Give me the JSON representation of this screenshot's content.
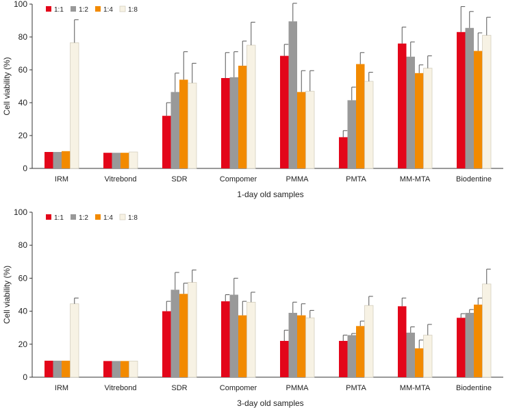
{
  "colors": {
    "s1": "#e3061a",
    "s2": "#999999",
    "s3": "#f28a00",
    "s4": "#f7f2e4",
    "axis": "#333333",
    "err": "#555555"
  },
  "chart_data": [
    {
      "type": "bar",
      "title": "",
      "xlabel": "1-day old samples",
      "ylabel": "Cell viability (%)",
      "ylim": [
        0,
        100
      ],
      "yticks": [
        0,
        20,
        40,
        60,
        80,
        100
      ],
      "legend_position": "top-left",
      "categories": [
        "IRM",
        "Vitrebond",
        "SDR",
        "Compomer",
        "PMMA",
        "PMTA",
        "MM-MTA",
        "Biodentine"
      ],
      "series": [
        {
          "name": "1:1",
          "values": [
            10,
            9.5,
            32,
            55,
            68.5,
            19,
            76,
            83
          ],
          "errors": [
            0,
            0,
            8,
            15.5,
            7,
            4,
            10,
            15.5
          ]
        },
        {
          "name": "1:2",
          "values": [
            10,
            9.5,
            46.5,
            55.5,
            89.5,
            41.5,
            68,
            85.5
          ],
          "errors": [
            0,
            0,
            11.5,
            15.5,
            11,
            8,
            9,
            10
          ]
        },
        {
          "name": "1:4",
          "values": [
            10.5,
            9.5,
            54,
            62.5,
            46.5,
            63.5,
            58,
            71.5
          ],
          "errors": [
            0,
            0,
            17,
            15,
            13,
            7,
            5,
            11
          ]
        },
        {
          "name": "1:8",
          "values": [
            76.5,
            10,
            52,
            75,
            47,
            53,
            61,
            81
          ],
          "errors": [
            14,
            0,
            12,
            14,
            12.5,
            5.5,
            7.5,
            11
          ]
        }
      ]
    },
    {
      "type": "bar",
      "title": "",
      "xlabel": "3-day old samples",
      "ylabel": "Cell viability (%)",
      "ylim": [
        0,
        100
      ],
      "yticks": [
        0,
        20,
        40,
        60,
        80,
        100
      ],
      "legend_position": "top-left",
      "categories": [
        "IRM",
        "Vitrebond",
        "SDR",
        "Compomer",
        "PMMA",
        "PMTA",
        "MM-MTA",
        "Biodentine"
      ],
      "series": [
        {
          "name": "1:1",
          "values": [
            10,
            9.8,
            40,
            46,
            22,
            22,
            43,
            36
          ],
          "errors": [
            0,
            0,
            6,
            4,
            6.5,
            3.5,
            5,
            2.5
          ]
        },
        {
          "name": "1:2",
          "values": [
            10,
            9.8,
            53,
            50,
            39,
            25.5,
            27,
            39
          ],
          "errors": [
            0,
            0,
            10.5,
            10,
            6.5,
            1,
            3.5,
            2
          ]
        },
        {
          "name": "1:4",
          "values": [
            10,
            9.8,
            50.5,
            37.5,
            37.5,
            31,
            17.5,
            44
          ],
          "errors": [
            0,
            0,
            6.5,
            8.5,
            7,
            3,
            5,
            4
          ]
        },
        {
          "name": "1:8",
          "values": [
            44.5,
            9.8,
            57.5,
            45.5,
            36,
            43.5,
            25.5,
            56.5
          ],
          "errors": [
            3.5,
            0,
            7.5,
            6,
            4.5,
            5.5,
            6.5,
            9
          ]
        }
      ]
    }
  ]
}
